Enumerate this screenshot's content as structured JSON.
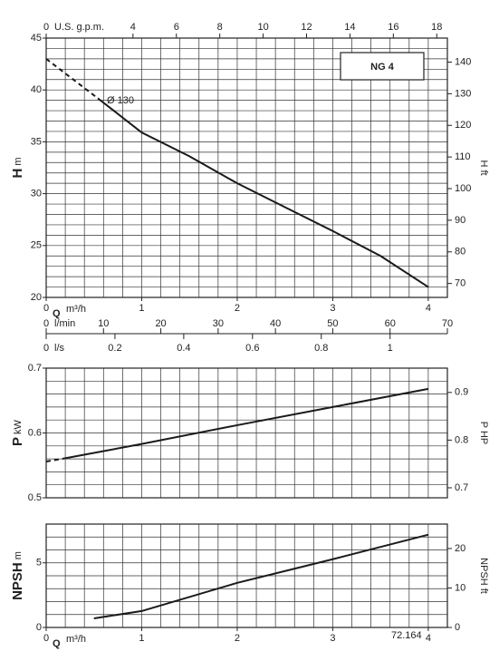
{
  "chart_data": [
    {
      "type": "line",
      "title": "NG 4",
      "annotation": "Ø 130",
      "y_label": {
        "symbol": "H",
        "unit": "m"
      },
      "y2_label": "H ft",
      "x_label": {
        "symbol": "Q",
        "unit": "m³/h"
      },
      "xlim": [
        0,
        4.2
      ],
      "xticks": [
        0,
        1,
        2,
        3,
        4
      ],
      "ylim": [
        20,
        45
      ],
      "yticks": [
        20,
        25,
        30,
        35,
        40,
        45
      ],
      "y2lim": [
        65.6,
        147.6
      ],
      "y2ticks": [
        70,
        80,
        90,
        100,
        110,
        120,
        130,
        140
      ],
      "grid": true,
      "xgrid": [
        0,
        0.2,
        0.4,
        0.6,
        0.8,
        1,
        1.2,
        1.4,
        1.6,
        1.8,
        2,
        2.2,
        2.4,
        2.6,
        2.8,
        3,
        3.2,
        3.4,
        3.6,
        3.8,
        4,
        4.2
      ],
      "ygrid": [
        20,
        21,
        22,
        23,
        24,
        25,
        26,
        27,
        28,
        29,
        30,
        31,
        32,
        33,
        34,
        35,
        36,
        37,
        38,
        39,
        40,
        41,
        42,
        43,
        44,
        45
      ],
      "top_axis": {
        "label": "U.S. g.p.m.",
        "lim": [
          0,
          18.49
        ],
        "ticks": [
          0,
          4,
          6,
          8,
          10,
          12,
          14,
          16,
          18
        ]
      },
      "extra_axes": [
        {
          "label": "l/min",
          "lim": [
            0,
            70
          ],
          "ticks": [
            0,
            10,
            20,
            30,
            40,
            50,
            60,
            70
          ]
        },
        {
          "label": "l/s",
          "lim": [
            0,
            1.1667
          ],
          "ticks": [
            0,
            0.2,
            0.4,
            0.6,
            0.8,
            1
          ]
        }
      ],
      "series": [
        {
          "dashed": true,
          "color": "#1a1a1a",
          "x": [
            0,
            0.27,
            0.54
          ],
          "values": [
            43,
            41.1,
            39.2
          ]
        },
        {
          "dashed": false,
          "color": "#1a1a1a",
          "x": [
            0.54,
            1,
            1.5,
            2,
            2.5,
            3,
            3.5,
            4
          ],
          "values": [
            39.2,
            35.9,
            33.6,
            31.0,
            28.7,
            26.4,
            24.0,
            21.0
          ]
        }
      ]
    },
    {
      "type": "line",
      "y_label": {
        "symbol": "P",
        "unit": "kW"
      },
      "y2_label": "P HP",
      "xlim": [
        0,
        4.2
      ],
      "ylim": [
        0.5,
        0.7
      ],
      "yticks": [
        0.5,
        0.6,
        0.7
      ],
      "y2lim": [
        0.679,
        0.951
      ],
      "y2ticks": [
        0.7,
        0.8,
        0.9
      ],
      "grid": true,
      "xgrid": [
        0,
        0.2,
        0.4,
        0.6,
        0.8,
        1,
        1.2,
        1.4,
        1.6,
        1.8,
        2,
        2.2,
        2.4,
        2.6,
        2.8,
        3,
        3.2,
        3.4,
        3.6,
        3.8,
        4,
        4.2
      ],
      "ygrid": [
        0.5,
        0.52,
        0.54,
        0.56,
        0.58,
        0.6,
        0.62,
        0.64,
        0.66,
        0.68,
        0.7
      ],
      "series": [
        {
          "dashed": true,
          "color": "#1a1a1a",
          "x": [
            0,
            0.2
          ],
          "values": [
            0.556,
            0.561
          ]
        },
        {
          "dashed": false,
          "color": "#1a1a1a",
          "x": [
            0.2,
            1,
            2,
            3,
            4
          ],
          "values": [
            0.561,
            0.583,
            0.612,
            0.64,
            0.668
          ]
        }
      ]
    },
    {
      "type": "line",
      "y_label": {
        "symbol": "NPSH",
        "unit": "m"
      },
      "y2_label": "NPSH ft",
      "x_label": {
        "symbol": "Q",
        "unit": "m³/h"
      },
      "note": "72.164",
      "xlim": [
        0,
        4.2
      ],
      "xticks": [
        0,
        1,
        2,
        3,
        4
      ],
      "ylim": [
        0,
        8
      ],
      "yticks": [
        0,
        5
      ],
      "y2lim": [
        0,
        26.2
      ],
      "y2ticks": [
        0,
        10,
        20
      ],
      "grid": true,
      "xgrid": [
        0,
        0.2,
        0.4,
        0.6,
        0.8,
        1,
        1.2,
        1.4,
        1.6,
        1.8,
        2,
        2.2,
        2.4,
        2.6,
        2.8,
        3,
        3.2,
        3.4,
        3.6,
        3.8,
        4,
        4.2
      ],
      "ygrid": [
        0,
        1,
        2,
        3,
        4,
        5,
        6,
        7,
        8
      ],
      "series": [
        {
          "dashed": false,
          "color": "#1a1a1a",
          "x": [
            0.5,
            1,
            2,
            3,
            4
          ],
          "values": [
            0.7,
            1.27,
            3.45,
            5.28,
            7.18
          ]
        }
      ]
    }
  ]
}
